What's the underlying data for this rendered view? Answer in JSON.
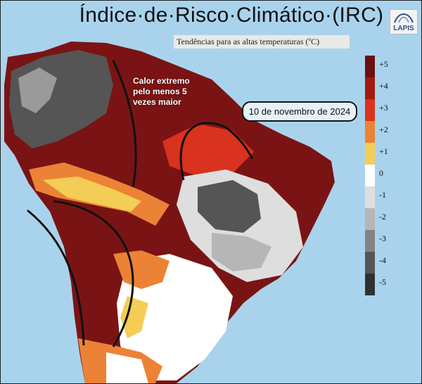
{
  "header": {
    "title": "Índice·de·Risco·Climático·(IRC)",
    "subtitle": "Tendências para as altas temperaturas (ºC)",
    "logo_text": "LAPIS"
  },
  "map": {
    "date": "10 de novembro de 2024",
    "annotation_lines": [
      "Calor extremo",
      "pelo menos 5",
      "vezes maior"
    ],
    "ocean_color": "#a9d3ec"
  },
  "legend": {
    "items": [
      {
        "label": "+5",
        "color": "#6b0f0f"
      },
      {
        "label": "+4",
        "color": "#a3190f"
      },
      {
        "label": "+3",
        "color": "#d9321e"
      },
      {
        "label": "+2",
        "color": "#ec8235"
      },
      {
        "label": "+1",
        "color": "#f3cd55"
      },
      {
        "label": "0",
        "color": "#ffffff"
      },
      {
        "label": "-1",
        "color": "#dedede"
      },
      {
        "label": "-2",
        "color": "#b6b6b6"
      },
      {
        "label": "-3",
        "color": "#838383"
      },
      {
        "label": "-4",
        "color": "#555555"
      },
      {
        "label": "-5",
        "color": "#303030"
      }
    ]
  }
}
